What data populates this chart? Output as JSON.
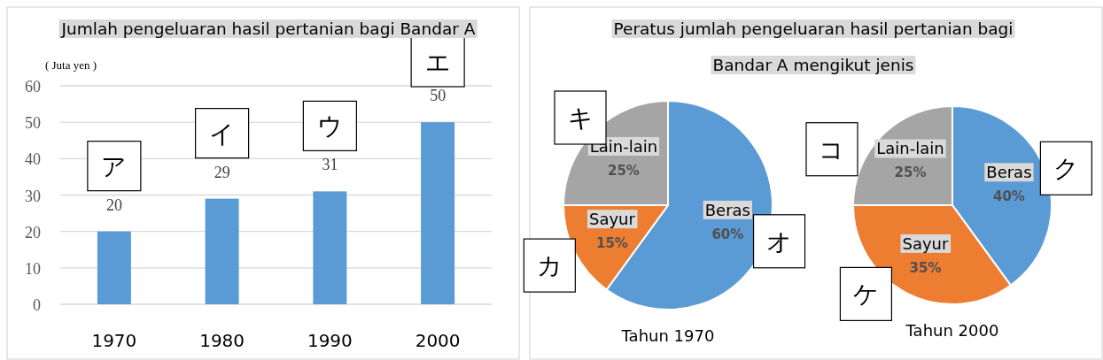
{
  "chart_data": [
    {
      "type": "bar",
      "title": "Jumlah pengeluaran hasil pertanian bagi Bandar A",
      "ylabel": "( Juta yen )",
      "categories": [
        "1970",
        "1980",
        "1990",
        "2000"
      ],
      "values": [
        20,
        29,
        31,
        50
      ],
      "color": "#5b9bd5",
      "ylim": [
        0,
        60
      ],
      "yticks": [
        0,
        10,
        20,
        30,
        40,
        50,
        60
      ],
      "grid": "y",
      "data_labels": true,
      "annotations": [
        "ア",
        "イ",
        "ウ",
        "エ"
      ]
    },
    {
      "type": "pie",
      "title": "Peratus jumlah pengeluaran hasil pertanian bagi Bandar A mengikut jenis",
      "xlabel": "Tahun 1970",
      "categories": [
        "Beras",
        "Sayur",
        "Lain-lain"
      ],
      "values": [
        60,
        15,
        25
      ],
      "colors": [
        "#5b9bd5",
        "#ed7d31",
        "#a5a5a5"
      ],
      "value_labels": [
        "60%",
        "15%",
        "25%"
      ],
      "annotations": [
        "オ",
        "カ",
        "キ"
      ]
    },
    {
      "type": "pie",
      "xlabel": "Tahun 2000",
      "categories": [
        "Beras",
        "Sayur",
        "Lain-lain"
      ],
      "values": [
        40,
        35,
        25
      ],
      "colors": [
        "#5b9bd5",
        "#ed7d31",
        "#a5a5a5"
      ],
      "value_labels": [
        "40%",
        "35%",
        "25%"
      ],
      "annotations": [
        "ク",
        "ケ",
        "コ"
      ]
    }
  ]
}
